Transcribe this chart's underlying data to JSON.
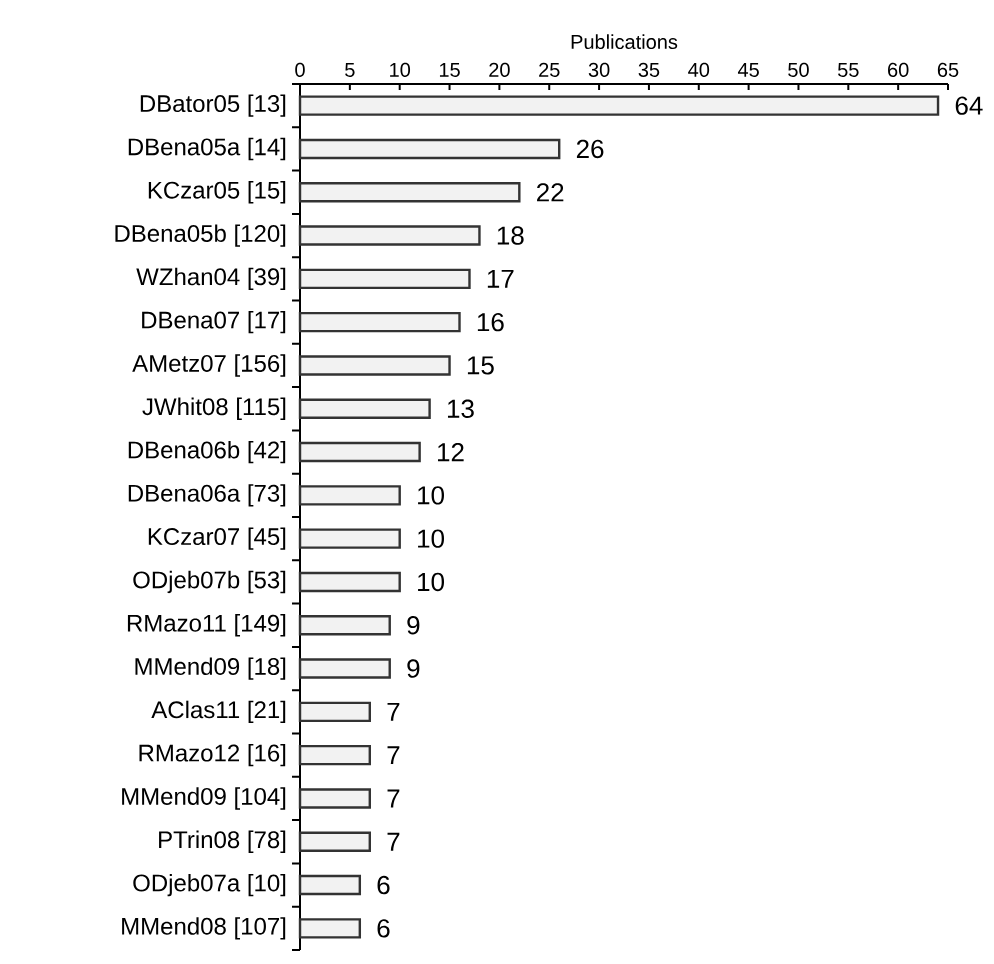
{
  "chart_data": {
    "type": "bar",
    "orientation": "horizontal",
    "xlabel": "Publications",
    "categories": [
      "DBator05 [13]",
      "DBena05a [14]",
      "KCzar05 [15]",
      "DBena05b [120]",
      "WZhan04 [39]",
      "DBena07 [17]",
      "AMetz07 [156]",
      "JWhit08 [115]",
      "DBena06b [42]",
      "DBena06a [73]",
      "KCzar07 [45]",
      "ODjeb07b [53]",
      "RMazo11 [149]",
      "MMend09 [18]",
      "AClas11 [21]",
      "RMazo12 [16]",
      "MMend09 [104]",
      "PTrin08 [78]",
      "ODjeb07a [10]",
      "MMend08 [107]"
    ],
    "values": [
      64,
      26,
      22,
      18,
      17,
      16,
      15,
      13,
      12,
      10,
      10,
      10,
      9,
      9,
      7,
      7,
      7,
      7,
      6,
      6
    ],
    "color": "#f2f2f2",
    "xlim": [
      0,
      65
    ],
    "xticks": [
      0,
      5,
      10,
      15,
      20,
      25,
      30,
      35,
      40,
      45,
      50,
      55,
      60,
      65
    ],
    "data_labels": true
  }
}
